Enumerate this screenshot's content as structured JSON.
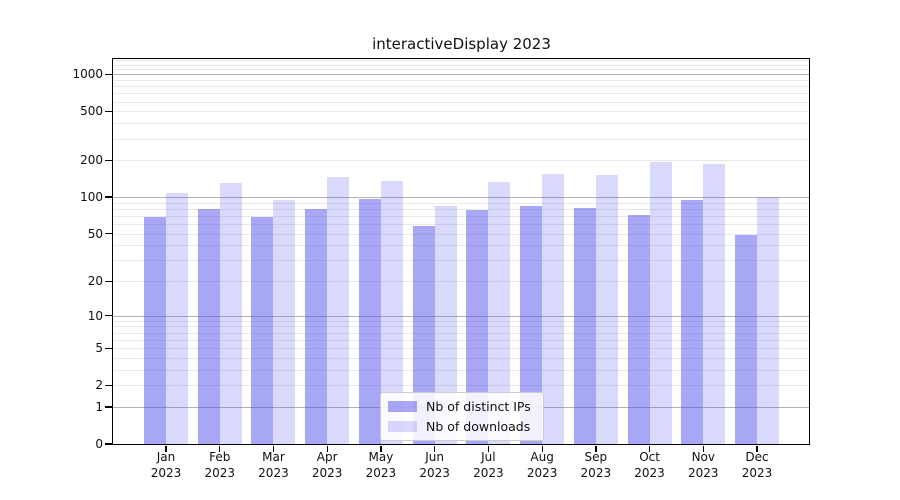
{
  "chart_data": {
    "type": "bar",
    "title": "interactiveDisplay 2023",
    "year": "2023",
    "categories": [
      "Jan\n2023",
      "Feb\n2023",
      "Mar\n2023",
      "Apr\n2023",
      "May\n2023",
      "Jun\n2023",
      "Jul\n2023",
      "Aug\n2023",
      "Sep\n2023",
      "Oct\n2023",
      "Nov\n2023",
      "Dec\n2023"
    ],
    "series": [
      {
        "name": "Nb of distinct IPs",
        "color": "rgba(80,80,235,0.5)",
        "values": [
          69,
          80,
          68,
          80,
          96,
          58,
          78,
          85,
          81,
          71,
          95,
          49
        ]
      },
      {
        "name": "Nb of downloads",
        "color": "rgba(80,80,235,0.22)",
        "values": [
          108,
          131,
          94,
          147,
          135,
          84,
          132,
          155,
          151,
          192,
          186,
          100
        ]
      }
    ],
    "yscale": "log10(value+1)",
    "ylim": [
      0,
      1320
    ],
    "ytick_values": [
      1000,
      500,
      200,
      100,
      50,
      20,
      10,
      5,
      2,
      1,
      0
    ],
    "major_grid_values": [
      1,
      10,
      100,
      1000
    ],
    "minor_grid_values": [
      2,
      3,
      4,
      5,
      6,
      7,
      8,
      9,
      20,
      30,
      40,
      50,
      60,
      70,
      80,
      90,
      200,
      300,
      400,
      500,
      600,
      700,
      800,
      900,
      1100,
      1200,
      1300
    ],
    "grid": true,
    "legend_position": "bottom-center",
    "colors": {
      "bar_ips": "rgba(80,80,235,0.5)",
      "bar_downloads": "rgba(80,80,235,0.22)",
      "major_grid": "#b2b2b2",
      "minor_grid": "#e8e8e8",
      "spine": "#000000",
      "text": "#111111",
      "legend_border": "#cccccc",
      "legend_bg": "rgba(255,255,255,0.85)"
    }
  }
}
